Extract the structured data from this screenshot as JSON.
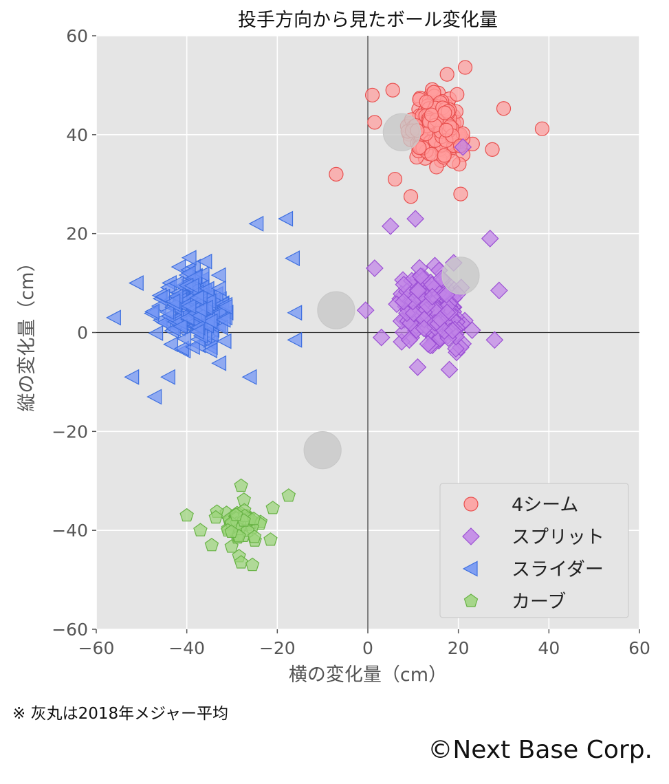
{
  "chart_data": {
    "type": "scatter",
    "title": "投手方向から見たボール変化量",
    "xlabel": "横の変化量（cm）",
    "ylabel": "縦の変化量（cm）",
    "xlim": [
      -60,
      60
    ],
    "ylim": [
      -60,
      60
    ],
    "xticks": [
      "−60",
      "−40",
      "−20",
      "0",
      "20",
      "40",
      "60"
    ],
    "yticks": [
      "60",
      "40",
      "20",
      "0",
      "−20",
      "−40",
      "−60"
    ],
    "grid": true,
    "legend_position": "bottom-right",
    "series": [
      {
        "name": "4シーム",
        "marker": "circle",
        "color": "#ff9c9c",
        "edge": "#e8504f",
        "center": [
          15,
          41
        ],
        "spread": [
          5,
          5
        ],
        "n": 230,
        "points": [
          [
            -7,
            32
          ],
          [
            1,
            48
          ],
          [
            1.5,
            42.5
          ],
          [
            38.5,
            41.2
          ],
          [
            30,
            45.3
          ],
          [
            21.5,
            53.6
          ],
          [
            9.5,
            27.5
          ],
          [
            6,
            31
          ],
          [
            20.5,
            28
          ],
          [
            27.5,
            37
          ],
          [
            5.5,
            49
          ],
          [
            17.5,
            52.2
          ]
        ]
      },
      {
        "name": "スプリット",
        "marker": "diamond",
        "color": "#c184e8",
        "edge": "#9b4fd4",
        "center": [
          14,
          5
        ],
        "spread": [
          6,
          6
        ],
        "n": 200,
        "points": [
          [
            -0.5,
            4.5
          ],
          [
            10.5,
            23
          ],
          [
            5,
            21.5
          ],
          [
            27,
            19
          ],
          [
            29,
            8.5
          ],
          [
            28,
            -1.5
          ],
          [
            3,
            -1
          ],
          [
            18,
            -7.5
          ],
          [
            11,
            -7
          ],
          [
            21,
            37.5
          ],
          [
            1.5,
            13
          ]
        ]
      },
      {
        "name": "スライダー",
        "marker": "triangle-left",
        "color": "#6f93f5",
        "edge": "#3d6fe0",
        "center": [
          -38,
          5
        ],
        "spread": [
          6,
          6
        ],
        "n": 210,
        "points": [
          [
            -18,
            23
          ],
          [
            -24.5,
            22
          ],
          [
            -56,
            3
          ],
          [
            -47,
            -13
          ],
          [
            -26,
            -9
          ],
          [
            -16,
            -1.5
          ],
          [
            -16,
            4
          ],
          [
            -16.5,
            15
          ],
          [
            -52,
            -9
          ],
          [
            -44,
            -9
          ],
          [
            -51,
            10
          ]
        ]
      },
      {
        "name": "カーブ",
        "marker": "pentagon",
        "color": "#9bd47a",
        "edge": "#68b345",
        "center": [
          -28,
          -39
        ],
        "spread": [
          3.5,
          3.5
        ],
        "n": 55,
        "points": [
          [
            -40,
            -37
          ],
          [
            -17.5,
            -33
          ],
          [
            -28,
            -31
          ],
          [
            -34.5,
            -43
          ],
          [
            -28,
            -46.5
          ],
          [
            -21,
            -35.5
          ],
          [
            -25.5,
            -47
          ],
          [
            -37,
            -40
          ]
        ]
      },
      {
        "name": "",
        "marker": "circle",
        "color": "#c8c8c8",
        "edge": "#c8c8c8",
        "points": [
          [
            -7,
            4.5
          ],
          [
            -10,
            -23.8
          ],
          [
            20.5,
            11.5
          ],
          [
            7.5,
            40.5
          ]
        ]
      }
    ]
  },
  "note": "※ 灰丸は2018年メジャー平均",
  "copyright": "©Next Base Corp."
}
